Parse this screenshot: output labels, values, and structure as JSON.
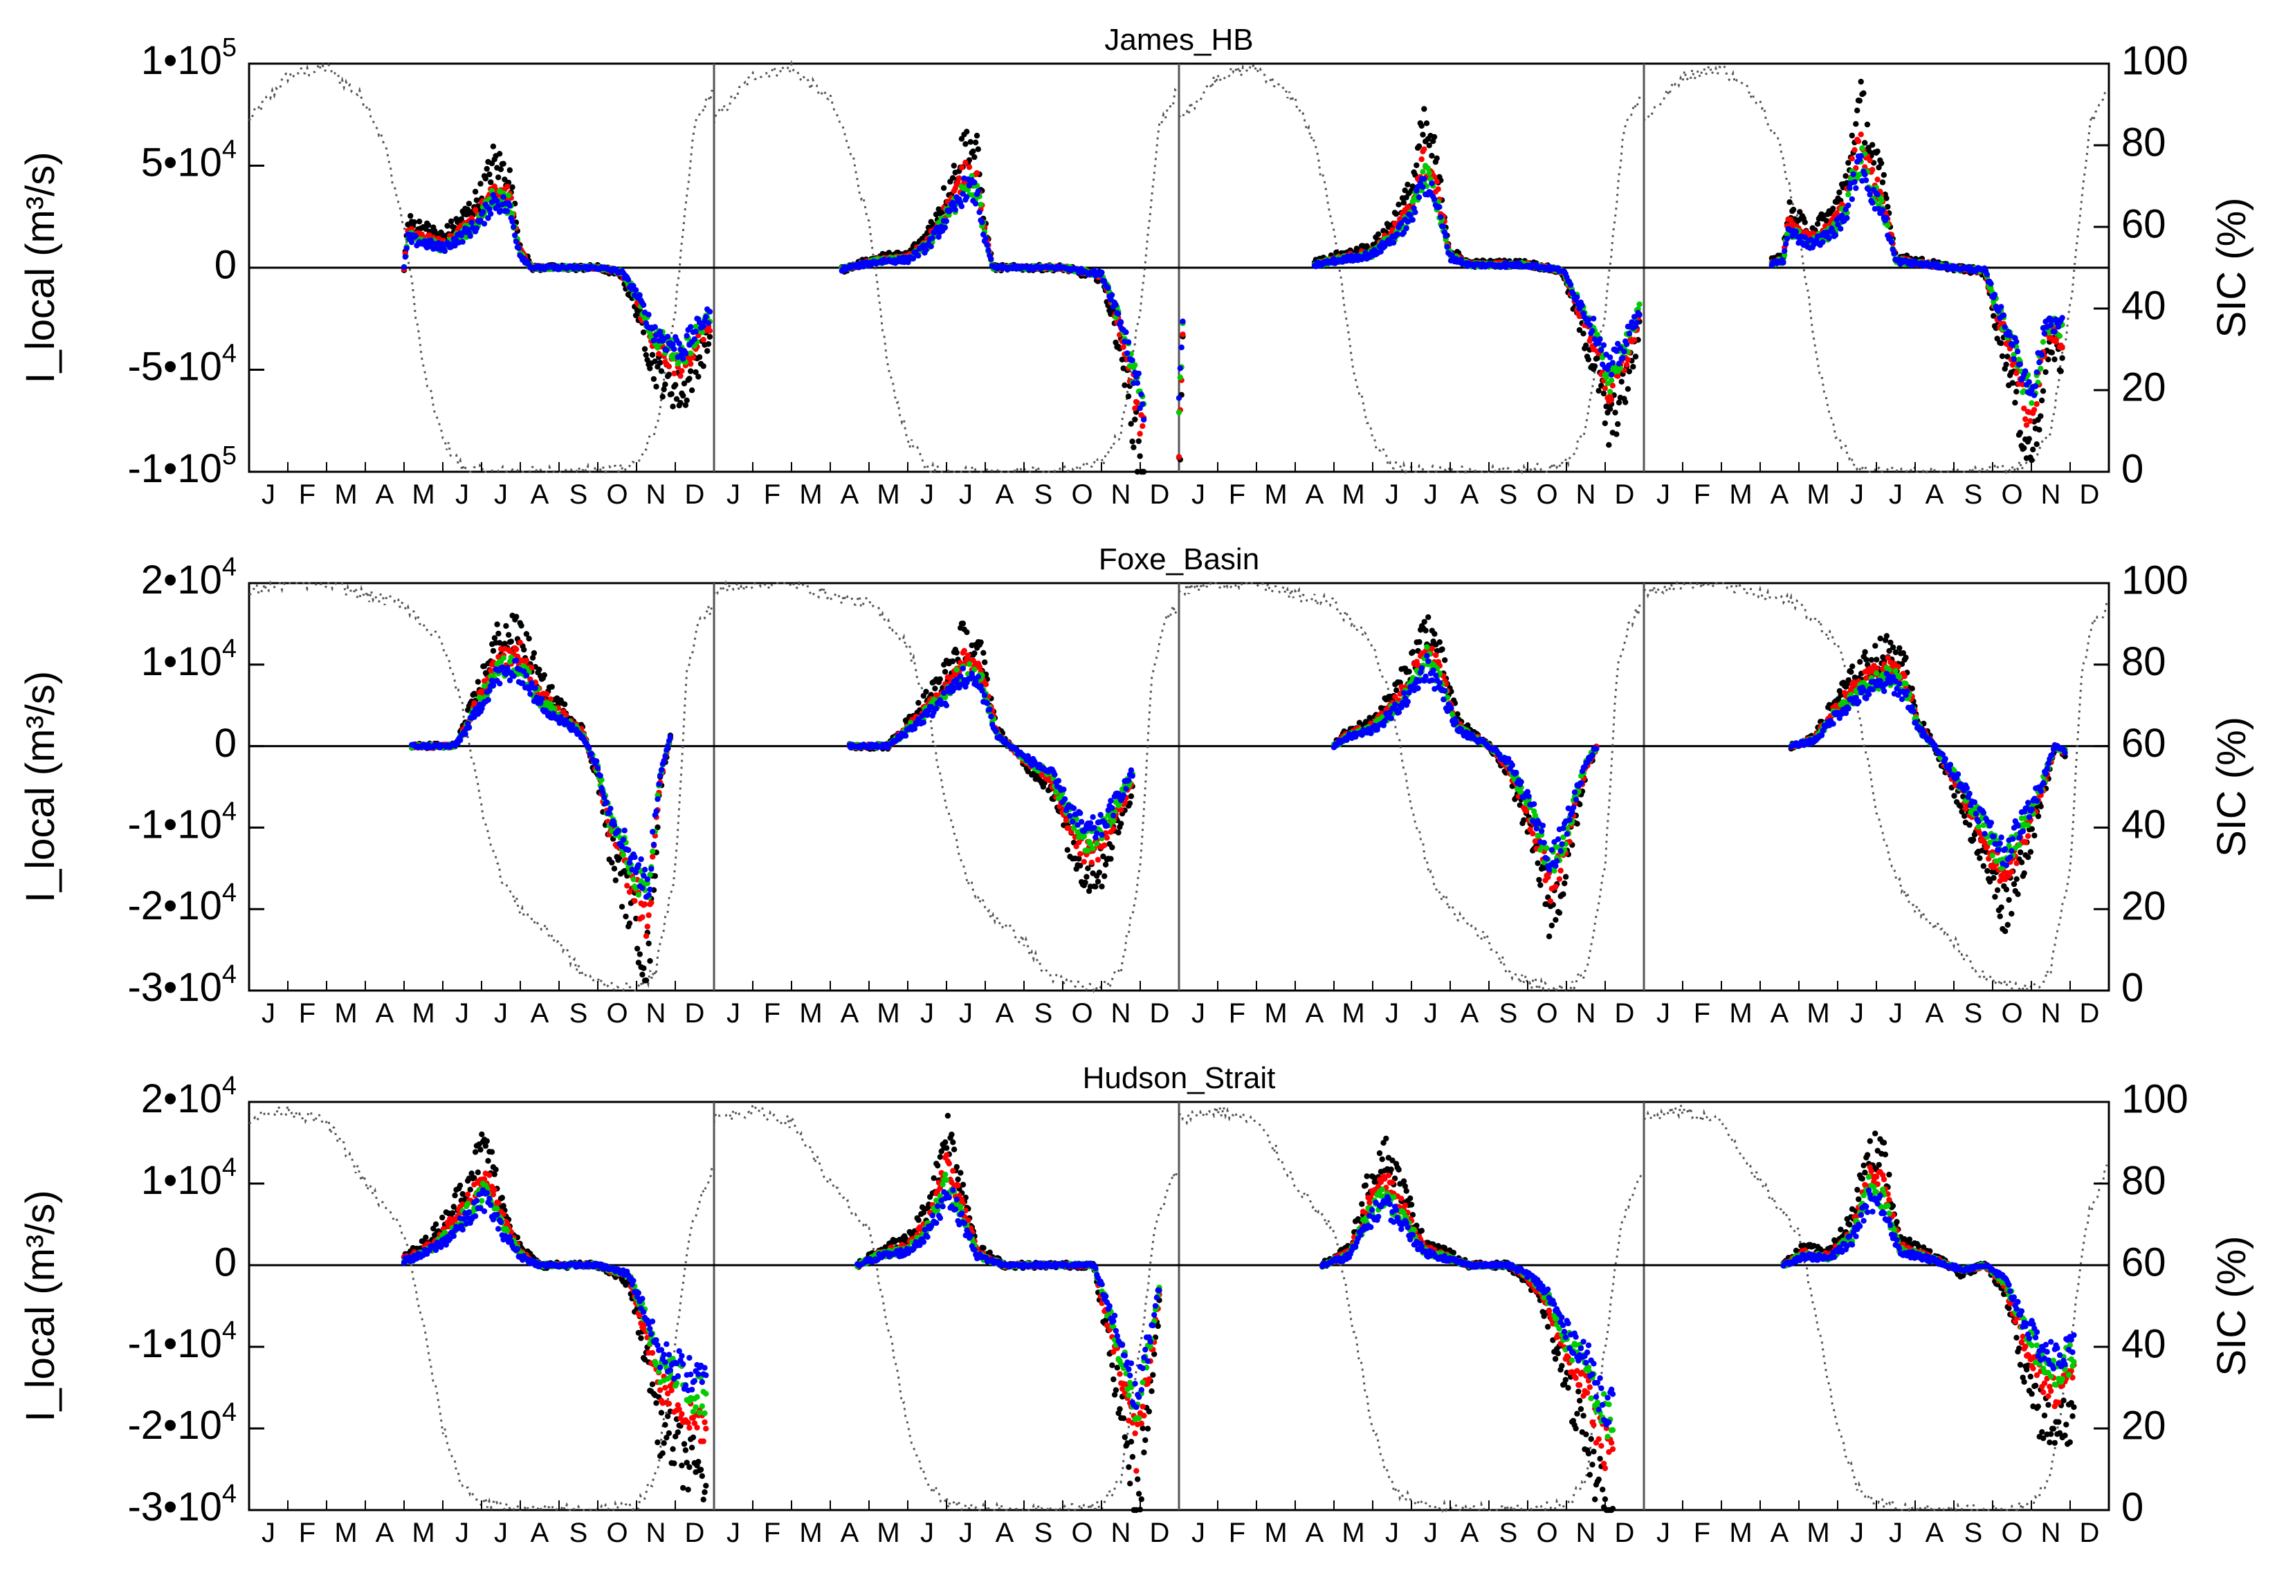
{
  "chart_data": [
    {
      "type": "scatter",
      "title": "James_HB",
      "ylabel": "I_local (m³/s)",
      "y2label": "SIC (%)",
      "ylim": [
        -100000,
        100000
      ],
      "y2lim": [
        0,
        100
      ],
      "yticks": [
        "1•10⁵",
        "5•10⁴",
        "0",
        "-5•10⁴",
        "-1•10⁵"
      ],
      "ytick_values": [
        100000,
        50000,
        0,
        -50000,
        -100000
      ],
      "y2ticks": [
        0,
        20,
        40,
        60,
        80,
        100
      ],
      "x_month_labels": [
        "J",
        "F",
        "M",
        "A",
        "M",
        "J",
        "J",
        "A",
        "S",
        "O",
        "N",
        "D"
      ],
      "n_years": 4,
      "sic_curve": [
        [
          0,
          86
        ],
        [
          1,
          97
        ],
        [
          2,
          99
        ],
        [
          3,
          91
        ],
        [
          3.5,
          80
        ],
        [
          4,
          60
        ],
        [
          4.5,
          25
        ],
        [
          5,
          8
        ],
        [
          5.5,
          1
        ],
        [
          6,
          0
        ],
        [
          7,
          0
        ],
        [
          8,
          0
        ],
        [
          9,
          0
        ],
        [
          10,
          2
        ],
        [
          10.5,
          10
        ],
        [
          11,
          40
        ],
        [
          11.5,
          85
        ],
        [
          12,
          94
        ]
      ],
      "series_profiles": [
        [
          [
            4.0,
            0
          ],
          [
            4.1,
            22000
          ],
          [
            4.5,
            19000
          ],
          [
            5,
            15000
          ],
          [
            5.5,
            24000
          ],
          [
            6,
            36000
          ],
          [
            6.3,
            52000
          ],
          [
            6.7,
            46000
          ],
          [
            7,
            10000
          ],
          [
            7.3,
            0
          ],
          [
            9,
            0
          ],
          [
            9.6,
            -3000
          ],
          [
            10.0,
            -20000
          ],
          [
            10.4,
            -47000
          ],
          [
            10.8,
            -57000
          ],
          [
            11.2,
            -62000
          ],
          [
            11.6,
            -45000
          ],
          [
            11.9,
            -35000
          ]
        ],
        [
          [
            3.3,
            -1000
          ],
          [
            4.3,
            5000
          ],
          [
            5,
            6000
          ],
          [
            5.5,
            16000
          ],
          [
            6.2,
            45000
          ],
          [
            6.5,
            62000
          ],
          [
            6.8,
            55000
          ],
          [
            7,
            20000
          ],
          [
            7.2,
            0
          ],
          [
            9,
            0
          ],
          [
            10,
            -5000
          ],
          [
            10.3,
            -25000
          ],
          [
            10.6,
            -50000
          ],
          [
            10.9,
            -85000
          ],
          [
            11.1,
            -105000
          ]
        ],
        [
          [
            0,
            -110000
          ],
          [
            0.1,
            -40000
          ]
        ],
        [
          [
            3.5,
            2000
          ],
          [
            4,
            5000
          ],
          [
            5,
            10000
          ],
          [
            5.5,
            22000
          ],
          [
            6,
            38000
          ],
          [
            6.3,
            68000
          ],
          [
            6.6,
            55000
          ],
          [
            7,
            8000
          ],
          [
            7.5,
            2000
          ],
          [
            9,
            2000
          ],
          [
            9.9,
            -2000
          ],
          [
            10.3,
            -25000
          ],
          [
            10.8,
            -52000
          ],
          [
            11.1,
            -80000
          ],
          [
            11.5,
            -60000
          ],
          [
            11.9,
            -30000
          ]
        ],
        [
          [
            3.3,
            3000
          ],
          [
            3.6,
            5000
          ],
          [
            3.7,
            28000
          ],
          [
            4.3,
            18000
          ],
          [
            4.8,
            25000
          ],
          [
            5.2,
            40000
          ],
          [
            5.4,
            65000
          ],
          [
            5.6,
            80000
          ],
          [
            5.9,
            56000
          ],
          [
            6.2,
            40000
          ],
          [
            6.5,
            5000
          ],
          [
            8,
            0
          ],
          [
            8.8,
            -2000
          ],
          [
            9.1,
            -28000
          ],
          [
            9.4,
            -48000
          ],
          [
            9.6,
            -65000
          ],
          [
            9.9,
            -90000
          ],
          [
            10.1,
            -85000
          ],
          [
            10.4,
            -40000
          ],
          [
            10.8,
            -45000
          ]
        ]
      ],
      "series_scale": {
        "black": 1.0,
        "red": 0.78,
        "green": 0.68,
        "blue": 0.64
      }
    },
    {
      "type": "scatter",
      "title": "Foxe_Basin",
      "ylabel": "I_local (m³/s)",
      "y2label": "SIC (%)",
      "ylim": [
        -30000,
        20000
      ],
      "y2lim": [
        0,
        100
      ],
      "yticks": [
        "2•10⁴",
        "1•10⁴",
        "0",
        "-1•10⁴",
        "-2•10⁴",
        "-3•10⁴"
      ],
      "ytick_values": [
        20000,
        10000,
        0,
        -10000,
        -20000,
        -30000
      ],
      "y2ticks": [
        0,
        20,
        40,
        60,
        80,
        100
      ],
      "x_month_labels": [
        "J",
        "F",
        "M",
        "A",
        "M",
        "J",
        "J",
        "A",
        "S",
        "O",
        "N",
        "D"
      ],
      "n_years": 4,
      "sic_curve": [
        [
          0,
          98
        ],
        [
          1,
          100
        ],
        [
          2,
          100
        ],
        [
          3,
          97
        ],
        [
          4,
          95
        ],
        [
          5,
          85
        ],
        [
          5.5,
          70
        ],
        [
          6,
          45
        ],
        [
          6.5,
          28
        ],
        [
          7,
          20
        ],
        [
          8,
          12
        ],
        [
          8.5,
          5
        ],
        [
          9,
          2
        ],
        [
          10,
          0
        ],
        [
          10.5,
          5
        ],
        [
          11,
          30
        ],
        [
          11.3,
          78
        ],
        [
          11.6,
          90
        ],
        [
          12,
          95
        ]
      ],
      "series_profiles": [
        [
          [
            4.2,
            0
          ],
          [
            5.3,
            0
          ],
          [
            5.6,
            3000
          ],
          [
            6,
            8000
          ],
          [
            6.4,
            13000
          ],
          [
            7,
            14000
          ],
          [
            7.5,
            8000
          ],
          [
            8,
            5000
          ],
          [
            8.6,
            2000
          ],
          [
            9.0,
            -4000
          ],
          [
            9.3,
            -12000
          ],
          [
            9.7,
            -18000
          ],
          [
            10.0,
            -22000
          ],
          [
            10.3,
            -27000
          ],
          [
            10.6,
            -5000
          ],
          [
            10.9,
            2000
          ]
        ],
        [
          [
            3.5,
            0
          ],
          [
            4.5,
            0
          ],
          [
            5.2,
            4000
          ],
          [
            6,
            9000
          ],
          [
            6.4,
            13000
          ],
          [
            6.9,
            11000
          ],
          [
            7.3,
            2000
          ],
          [
            8,
            -2000
          ],
          [
            8.7,
            -5000
          ],
          [
            9.2,
            -12000
          ],
          [
            9.6,
            -16000
          ],
          [
            10,
            -15000
          ],
          [
            10.4,
            -10000
          ],
          [
            10.8,
            -5000
          ]
        ],
        [
          [
            4,
            0
          ],
          [
            4.3,
            1500
          ],
          [
            5,
            3000
          ],
          [
            5.5,
            6000
          ],
          [
            6,
            10000
          ],
          [
            6.4,
            15000
          ],
          [
            6.8,
            10000
          ],
          [
            7.2,
            3000
          ],
          [
            8,
            0
          ],
          [
            8.5,
            -3000
          ],
          [
            9,
            -10000
          ],
          [
            9.3,
            -15000
          ],
          [
            9.6,
            -21000
          ],
          [
            9.9,
            -17000
          ],
          [
            10.2,
            -10000
          ],
          [
            10.5,
            -3000
          ],
          [
            10.8,
            0
          ]
        ],
        [
          [
            3.8,
            0
          ],
          [
            4.4,
            1000
          ],
          [
            5,
            6000
          ],
          [
            5.5,
            9000
          ],
          [
            6,
            11000
          ],
          [
            6.4,
            12000
          ],
          [
            6.8,
            9000
          ],
          [
            7.1,
            3000
          ],
          [
            7.5,
            0
          ],
          [
            8.2,
            -7000
          ],
          [
            8.7,
            -13000
          ],
          [
            9.3,
            -20000
          ],
          [
            9.7,
            -15000
          ],
          [
            10.2,
            -8000
          ],
          [
            10.6,
            0
          ],
          [
            10.9,
            -1000
          ]
        ]
      ],
      "series_scale": {
        "black": 1.0,
        "red": 0.82,
        "green": 0.72,
        "blue": 0.66
      }
    },
    {
      "type": "scatter",
      "title": "Hudson_Strait",
      "ylabel": "I_local (m³/s)",
      "y2label": "SIC (%)",
      "ylim": [
        -30000,
        20000
      ],
      "y2lim": [
        0,
        100
      ],
      "yticks": [
        "2•10⁴",
        "1•10⁴",
        "0",
        "-1•10⁴",
        "-2•10⁴",
        "-3•10⁴"
      ],
      "ytick_values": [
        20000,
        10000,
        0,
        -10000,
        -20000,
        -30000
      ],
      "y2ticks": [
        0,
        20,
        40,
        60,
        80,
        100
      ],
      "x_month_labels": [
        "J",
        "F",
        "M",
        "A",
        "M",
        "J",
        "J",
        "A",
        "S",
        "O",
        "N",
        "D"
      ],
      "n_years": 4,
      "sic_curve": [
        [
          0,
          96
        ],
        [
          1,
          98
        ],
        [
          2,
          95
        ],
        [
          2.5,
          88
        ],
        [
          3,
          80
        ],
        [
          4,
          68
        ],
        [
          4.5,
          45
        ],
        [
          5,
          20
        ],
        [
          5.5,
          6
        ],
        [
          6,
          2
        ],
        [
          7,
          0
        ],
        [
          8,
          0
        ],
        [
          9,
          0
        ],
        [
          10,
          1
        ],
        [
          10.5,
          8
        ],
        [
          11,
          40
        ],
        [
          11.4,
          70
        ],
        [
          12,
          85
        ]
      ],
      "series_profiles": [
        [
          [
            4,
            1000
          ],
          [
            4.4,
            2000
          ],
          [
            5,
            5000
          ],
          [
            5.6,
            10000
          ],
          [
            6.1,
            15000
          ],
          [
            6.5,
            8000
          ],
          [
            7,
            2000
          ],
          [
            7.5,
            0
          ],
          [
            9,
            0
          ],
          [
            9.8,
            -2000
          ],
          [
            10.2,
            -10000
          ],
          [
            10.6,
            -20000
          ],
          [
            11,
            -22000
          ],
          [
            11.4,
            -25000
          ],
          [
            11.8,
            -26000
          ]
        ],
        [
          [
            3.7,
            0
          ],
          [
            4.3,
            2000
          ],
          [
            5,
            3000
          ],
          [
            5.5,
            7000
          ],
          [
            5.8,
            12000
          ],
          [
            6,
            17000
          ],
          [
            6.4,
            10000
          ],
          [
            6.8,
            2000
          ],
          [
            7.5,
            0
          ],
          [
            9.8,
            0
          ],
          [
            10.2,
            -10000
          ],
          [
            10.6,
            -20000
          ],
          [
            10.9,
            -30000
          ],
          [
            11.2,
            -18000
          ],
          [
            11.5,
            -5000
          ]
        ],
        [
          [
            3.7,
            0
          ],
          [
            4.4,
            2000
          ],
          [
            4.9,
            10000
          ],
          [
            5.3,
            14000
          ],
          [
            5.8,
            9000
          ],
          [
            6.3,
            3000
          ],
          [
            7.5,
            0
          ],
          [
            8.5,
            0
          ],
          [
            9,
            -2000
          ],
          [
            9.5,
            -6000
          ],
          [
            10,
            -15000
          ],
          [
            10.5,
            -20000
          ],
          [
            10.9,
            -29000
          ],
          [
            11.2,
            -32000
          ]
        ],
        [
          [
            3.6,
            0
          ],
          [
            4.1,
            2000
          ],
          [
            4.8,
            1500
          ],
          [
            5.4,
            6000
          ],
          [
            5.8,
            15000
          ],
          [
            6.2,
            13000
          ],
          [
            6.6,
            3000
          ],
          [
            7.5,
            1000
          ],
          [
            8.2,
            -1000
          ],
          [
            8.8,
            0
          ],
          [
            9.3,
            -3000
          ],
          [
            9.8,
            -12000
          ],
          [
            10.2,
            -18000
          ],
          [
            10.6,
            -21000
          ],
          [
            11.1,
            -18000
          ]
        ]
      ],
      "series_scale": {
        "black": 1.0,
        "red": 0.75,
        "green": 0.62,
        "blue": 0.55
      }
    }
  ],
  "series_colors": {
    "black": "#000000",
    "red": "#ff0000",
    "green": "#00cc00",
    "blue": "#0000ff"
  },
  "sic_line_color": "#555555",
  "zero_line_color": "#000000"
}
